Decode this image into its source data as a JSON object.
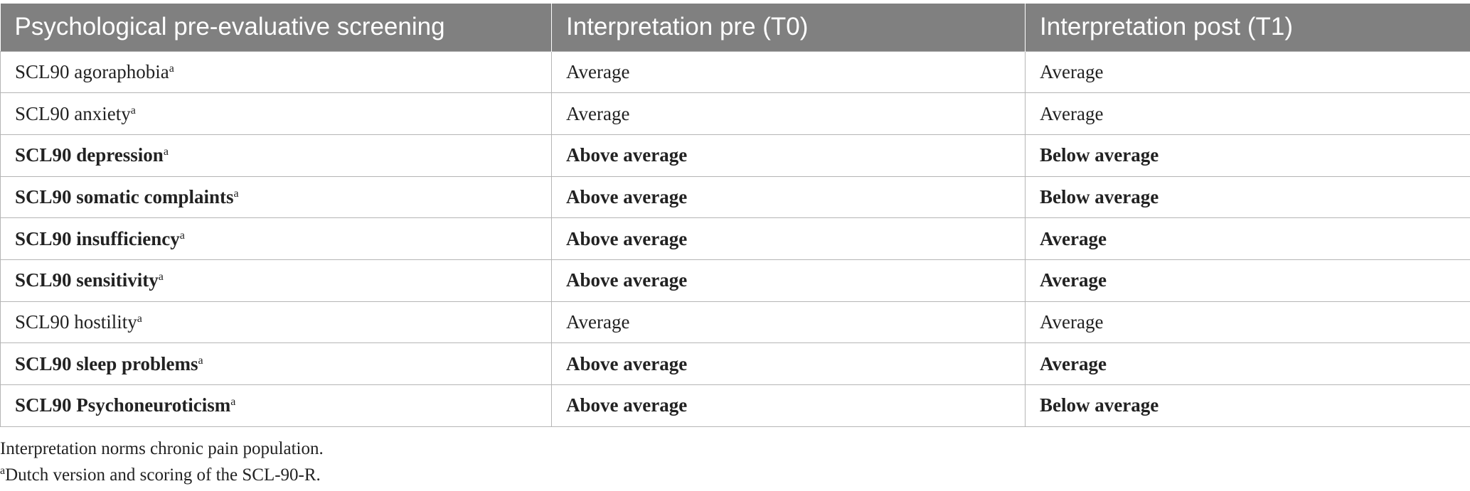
{
  "table": {
    "headers": [
      "Psychological pre-evaluative screening",
      "Interpretation pre (T0)",
      "Interpretation post (T1)"
    ],
    "rows": [
      {
        "label": "SCL90 agoraphobia",
        "note": "a",
        "pre": "Average",
        "post": "Average",
        "bold": false
      },
      {
        "label": "SCL90 anxiety",
        "note": "a",
        "pre": "Average",
        "post": "Average",
        "bold": false
      },
      {
        "label": "SCL90 depression",
        "note": "a",
        "pre": "Above average",
        "post": "Below average",
        "bold": true
      },
      {
        "label": "SCL90 somatic complaints",
        "note": "a",
        "pre": "Above average",
        "post": "Below average",
        "bold": true
      },
      {
        "label": "SCL90 insufficiency",
        "note": "a",
        "pre": "Above average",
        "post": "Average",
        "bold": true
      },
      {
        "label": "SCL90 sensitivity",
        "note": "a",
        "pre": "Above average",
        "post": "Average",
        "bold": true
      },
      {
        "label": "SCL90 hostility",
        "note": "a",
        "pre": "Average",
        "post": "Average",
        "bold": false
      },
      {
        "label": "SCL90 sleep problems",
        "note": "a",
        "pre": "Above average",
        "post": "Average",
        "bold": true
      },
      {
        "label": "SCL90 Psychoneuroticism",
        "note": "a",
        "pre": "Above average",
        "post": "Below average",
        "bold": true
      }
    ]
  },
  "footnotes": [
    {
      "text": "Interpretation norms chronic pain population."
    },
    {
      "marker": "a",
      "text": "Dutch version and scoring of the SCL-90-R."
    }
  ]
}
